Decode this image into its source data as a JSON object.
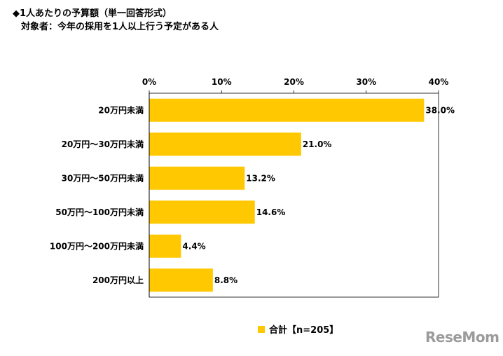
{
  "title": {
    "line1": "◆1人あたりの予算額（単一回答形式）",
    "line2": "対象者：今年の採用を1人以上行う予定がある人"
  },
  "colors": {
    "bar": "#FFC800",
    "axis": "#000000"
  },
  "legend": {
    "label": "合計【n=205】"
  },
  "watermark": "ReseMom",
  "chart_data": {
    "type": "bar",
    "orientation": "horizontal",
    "categories": [
      "20万円未満",
      "20万円～30万円未満",
      "30万円～50万円未満",
      "50万円～100万円未満",
      "100万円～200万円未満",
      "200万円以上"
    ],
    "series": [
      {
        "name": "合計【n=205】",
        "values": [
          38.0,
          21.0,
          13.2,
          14.6,
          4.4,
          8.8
        ]
      }
    ],
    "data_labels": [
      "38.0%",
      "21.0%",
      "13.2%",
      "14.6%",
      "4.4%",
      "8.8%"
    ],
    "x_ticks": [
      "0%",
      "10%",
      "20%",
      "30%",
      "40%"
    ],
    "xlim": [
      0,
      40
    ],
    "grid": false,
    "legend_position": "bottom"
  }
}
